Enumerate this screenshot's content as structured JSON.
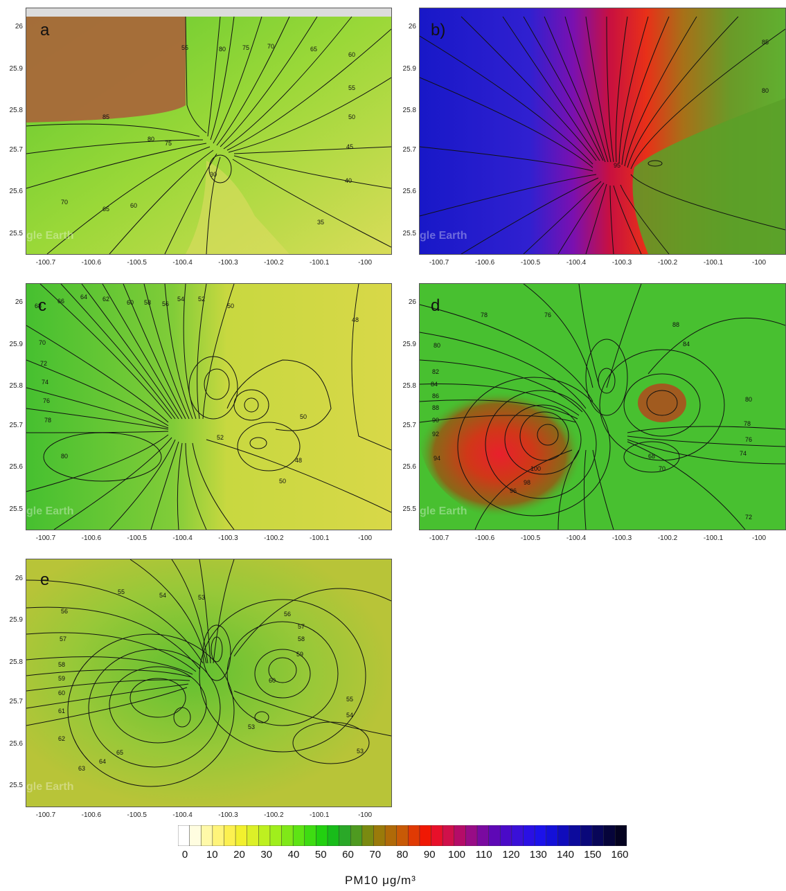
{
  "panels": [
    {
      "id": "a",
      "label": "a"
    },
    {
      "id": "b",
      "label": "b)"
    },
    {
      "id": "c",
      "label": "c"
    },
    {
      "id": "d",
      "label": "d"
    },
    {
      "id": "e",
      "label": "e"
    }
  ],
  "axes": {
    "y_ticks": [
      "26",
      "25.9",
      "25.8",
      "25.7",
      "25.6",
      "25.5"
    ],
    "x_ticks": [
      "-100.7",
      "-100.6",
      "-100.5",
      "-100.4",
      "-100.3",
      "-100.2",
      "-100.1",
      "-100"
    ]
  },
  "watermark": "gle Earth",
  "contour_labels": {
    "a": [
      "85",
      "80",
      "75",
      "70",
      "65",
      "60",
      "55",
      "50",
      "45",
      "40",
      "35",
      "30",
      "85",
      "80",
      "75",
      "70",
      "65",
      "60"
    ],
    "b": [
      "85",
      "80",
      "95"
    ],
    "c": [
      "68",
      "66",
      "64",
      "62",
      "60",
      "58",
      "56",
      "54",
      "52",
      "50",
      "48",
      "70",
      "72",
      "74",
      "76",
      "78",
      "80",
      "48",
      "50",
      "52"
    ],
    "d": [
      "78",
      "76",
      "80",
      "82",
      "84",
      "86",
      "88",
      "90",
      "92",
      "94",
      "96",
      "98",
      "100",
      "72",
      "74",
      "76",
      "78",
      "80",
      "84",
      "88",
      "70",
      "68"
    ],
    "e": [
      "55",
      "54",
      "53",
      "56",
      "57",
      "58",
      "59",
      "60",
      "61",
      "62",
      "63",
      "64",
      "65",
      "53",
      "56",
      "57",
      "58",
      "59",
      "60",
      "55",
      "54",
      "53"
    ]
  },
  "colorbar": {
    "title": "PM10 μg/m³",
    "tick_labels": [
      "0",
      "10",
      "20",
      "30",
      "40",
      "50",
      "60",
      "70",
      "80",
      "90",
      "100",
      "110",
      "120",
      "130",
      "140",
      "150",
      "160"
    ],
    "colors": [
      "#ffffff",
      "#fffde0",
      "#fff9a8",
      "#fff47a",
      "#fcf050",
      "#f2f02e",
      "#dcf028",
      "#bef020",
      "#a0ee1c",
      "#80e818",
      "#5ee414",
      "#3edc12",
      "#22d010",
      "#18bc1a",
      "#2aa828",
      "#4e9a20",
      "#7a8a10",
      "#9a7a0a",
      "#b06a08",
      "#c85a06",
      "#e03a04",
      "#f01804",
      "#e8102a",
      "#d0104a",
      "#b40c68",
      "#980c86",
      "#7a0aa0",
      "#5e08b6",
      "#4a0ac8",
      "#3a10d8",
      "#2a10e4",
      "#1c12ea",
      "#1410d8",
      "#100cbc",
      "#0c0a9c",
      "#0a087a",
      "#080658",
      "#06043a",
      "#040220"
    ]
  }
}
